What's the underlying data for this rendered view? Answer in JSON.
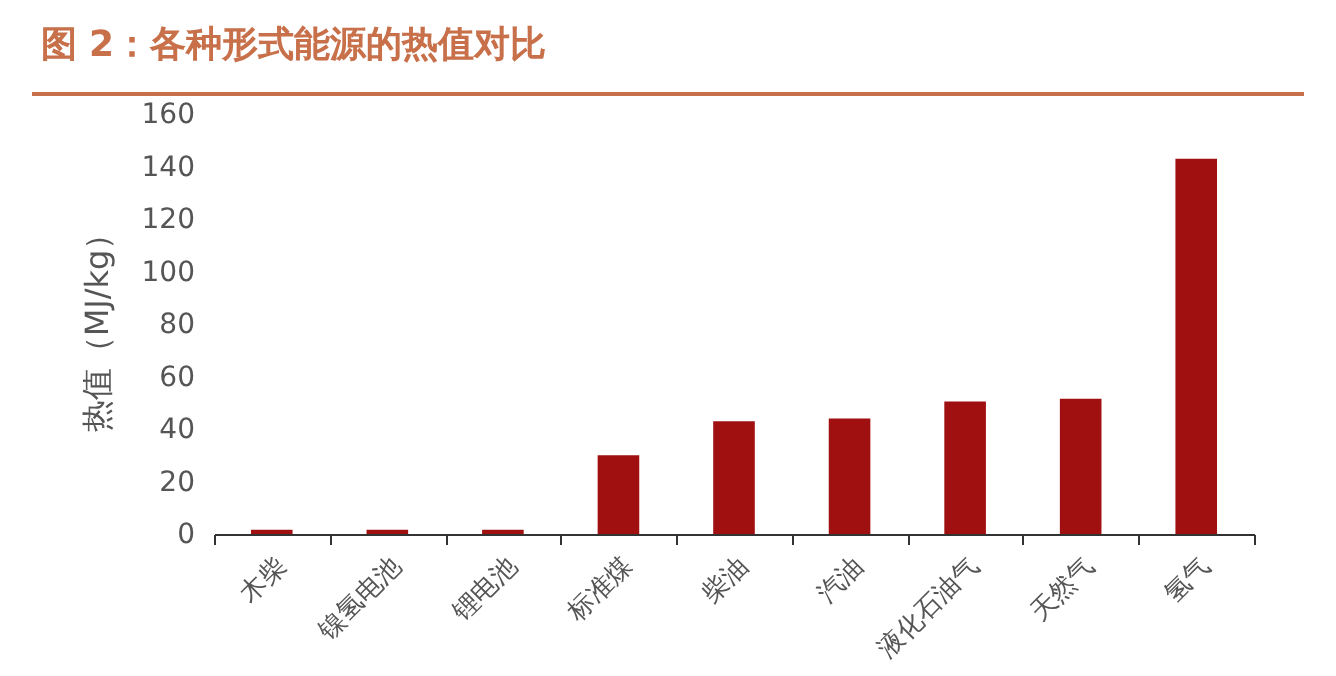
{
  "chart_data": {
    "type": "bar",
    "title": "图 2：各种形式能源的热值对比",
    "ylabel": "热值（MJ/kg）",
    "categories": [
      "木柴",
      "镍氢电池",
      "锂电池",
      "标准煤",
      "柴油",
      "汽油",
      "液化石油气",
      "天然气",
      "氢气"
    ],
    "values": [
      1.6,
      1.6,
      1.6,
      30,
      43,
      44,
      50.5,
      51.5,
      143
    ],
    "color": "#a01010",
    "ylim": [
      0,
      160
    ],
    "yticks": [
      0,
      20,
      40,
      60,
      80,
      100,
      120,
      140,
      160
    ],
    "grid": false
  }
}
